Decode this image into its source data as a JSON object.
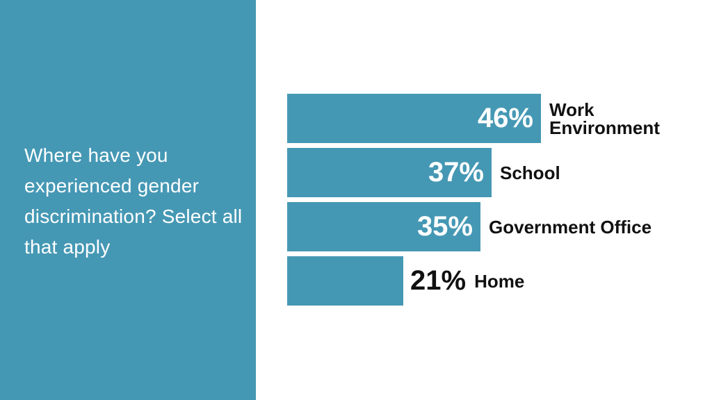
{
  "panel": {
    "background_color": "#4598b4",
    "text_color": "#ffffff",
    "question": "Where have you experienced gender discrimination? Select all that apply",
    "question_lines": [
      "Where have you",
      "experienced gender",
      "discrimination? Select all",
      "that apply"
    ]
  },
  "chart_data": {
    "type": "bar",
    "orientation": "horizontal",
    "title": "Where have you experienced gender discrimination? Select all that apply",
    "categories": [
      "Work Environment",
      "School",
      "Government Office",
      "Home"
    ],
    "values": [
      46,
      37,
      35,
      21
    ],
    "unit": "%",
    "xlim": [
      0,
      46
    ],
    "axes_visible": false,
    "gridlines": false,
    "legend": "none",
    "bar_color": "#4598b4",
    "value_label_color_inside": "#ffffff",
    "value_label_color_outside": "#111111",
    "category_label_color": "#111111",
    "bars": [
      {
        "category": "Work Environment",
        "category_lines": [
          "Work",
          "Environment"
        ],
        "value": 46,
        "value_label": "46%"
      },
      {
        "category": "School",
        "category_lines": [
          "School"
        ],
        "value": 37,
        "value_label": "37%"
      },
      {
        "category": "Government Office",
        "category_lines": [
          "Government Office"
        ],
        "value": 35,
        "value_label": "35%"
      },
      {
        "category": "Home",
        "category_lines": [
          "Home"
        ],
        "value": 21,
        "value_label": "21%"
      }
    ]
  }
}
